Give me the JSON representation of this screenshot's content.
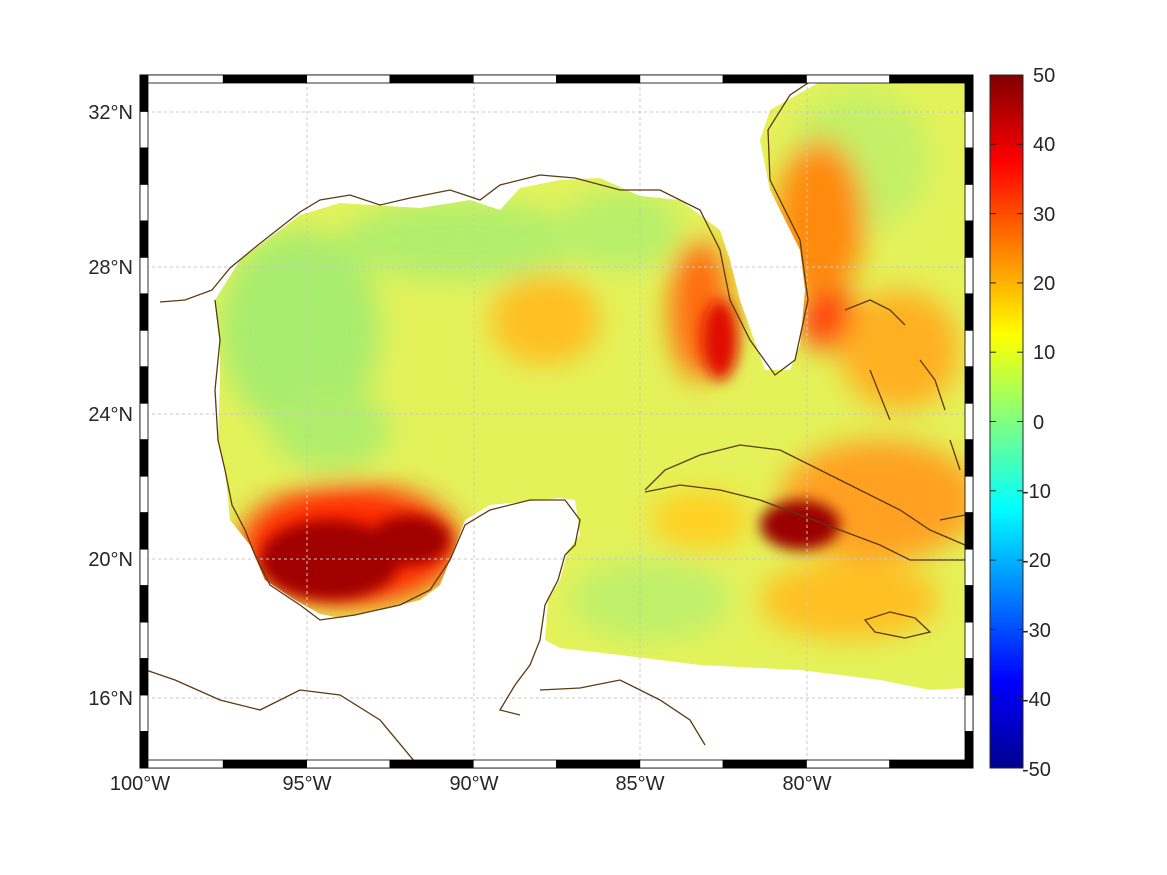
{
  "map": {
    "projection": "Mercator",
    "lon_range": [
      -100,
      -75
    ],
    "lat_range": [
      14,
      33
    ],
    "lon_ticks": [
      "100°W",
      "95°W",
      "90°W",
      "85°W",
      "80°W"
    ],
    "lat_ticks": [
      "32°N",
      "28°N",
      "24°N",
      "20°N",
      "16°N"
    ],
    "grid": true,
    "colors": {
      "coastline": "#5c3a12",
      "grid": "#c8c8c8",
      "frame": "#000000"
    }
  },
  "colorbar": {
    "colormap": "jet",
    "min": -50,
    "max": 50,
    "ticks": [
      "50",
      "40",
      "30",
      "20",
      "10",
      "0",
      "-10",
      "-20",
      "-30",
      "-40",
      "-50"
    ]
  },
  "field_features": {
    "background_level": 8,
    "hotspots": [
      {
        "region": "Bay of Campeche",
        "value": 48
      },
      {
        "region": "South of Cuba",
        "value": 45
      },
      {
        "region": "West Florida shelf",
        "value": 30
      },
      {
        "region": "Gulf Stream off Florida",
        "value": 28
      },
      {
        "region": "Loop Current",
        "value": 20
      }
    ]
  }
}
